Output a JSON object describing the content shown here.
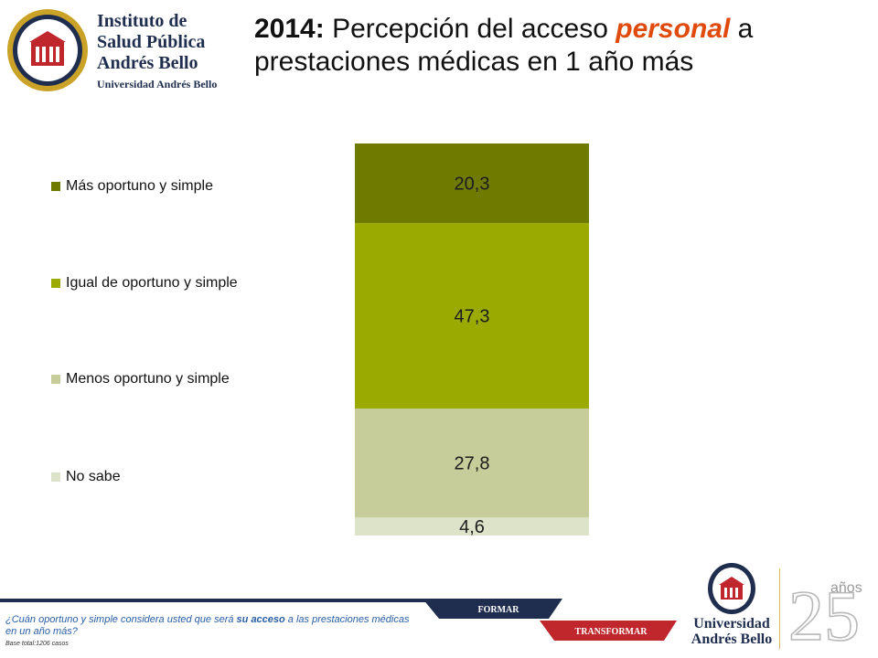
{
  "logo": {
    "line1": "Instituto de",
    "line2": "Salud Pública",
    "line3": "Andrés Bello",
    "line4": "Universidad Andrés Bello"
  },
  "title": {
    "year": "2014:",
    "before": " Percepción del acceso ",
    "emphasis": "personal",
    "after": " a prestaciones médicas en 1 año más"
  },
  "footer": {
    "question_pre": "¿Cuán oportuno y simple considera usted que será ",
    "question_bold": "su acceso",
    "question_post": " a las prestaciones médicas en un año más?",
    "base": "Base total:1206  casos",
    "band_formar": "FORMAR",
    "band_transformar": "TRANSFORMAR"
  },
  "uab_logo": {
    "line1": "Universidad",
    "line2": "Andrés Bello"
  },
  "anniversary": {
    "number": "25",
    "word": "años"
  },
  "colors": {
    "series1": "#6f7a00",
    "series2": "#9aaa00",
    "series3": "#c6cc9a",
    "series4": "#dde3c8",
    "title_emphasis": "#e04a0c",
    "navy": "#1f2d4e",
    "red": "#c0272d"
  },
  "chart_data": {
    "type": "bar",
    "stacked": true,
    "categories": [
      ""
    ],
    "series": [
      {
        "name": "Más oportuno y simple",
        "values": [
          20.3
        ],
        "label": "20,3",
        "color": "#6f7a00"
      },
      {
        "name": "Igual de oportuno y simple",
        "values": [
          47.3
        ],
        "label": "47,3",
        "color": "#9aaa00"
      },
      {
        "name": "Menos oportuno y simple",
        "values": [
          27.8
        ],
        "label": "27,8",
        "color": "#c6cc9a"
      },
      {
        "name": "No sabe",
        "values": [
          4.6
        ],
        "label": "4,6",
        "color": "#dde3c8"
      }
    ],
    "ylim": [
      0,
      100
    ],
    "legend": "left",
    "grid": false
  }
}
